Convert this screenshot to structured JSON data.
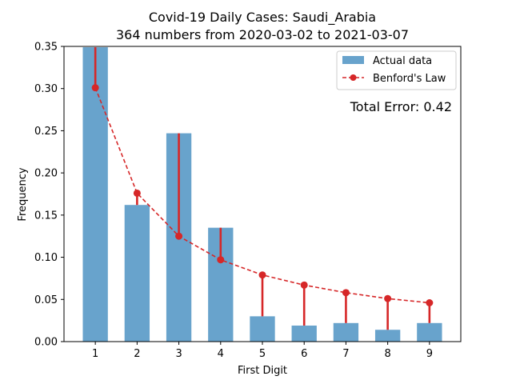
{
  "chart_data": {
    "type": "bar",
    "title": "Covid-19 Daily Cases: Saudi_Arabia",
    "subtitle": "364 numbers from 2020-03-02 to 2021-03-07",
    "xlabel": "First Digit",
    "ylabel": "Frequency",
    "categories": [
      "1",
      "2",
      "3",
      "4",
      "5",
      "6",
      "7",
      "8",
      "9"
    ],
    "ylim": [
      0,
      0.35
    ],
    "yticks": [
      "0.00",
      "0.05",
      "0.10",
      "0.15",
      "0.20",
      "0.25",
      "0.30",
      "0.35"
    ],
    "series": [
      {
        "name": "Actual data",
        "type": "bar",
        "color": "#5b9bc8",
        "values": [
          0.349,
          0.162,
          0.247,
          0.135,
          0.03,
          0.019,
          0.022,
          0.014,
          0.022
        ]
      },
      {
        "name": "Benford's Law",
        "type": "line",
        "color": "#d62728",
        "style": "dashed",
        "values": [
          0.301,
          0.176,
          0.125,
          0.097,
          0.079,
          0.067,
          0.058,
          0.051,
          0.046
        ]
      }
    ],
    "annotation": "Total Error: 0.42",
    "annotation_color": "#d62728",
    "legend_position": "top-right",
    "grid": false
  }
}
